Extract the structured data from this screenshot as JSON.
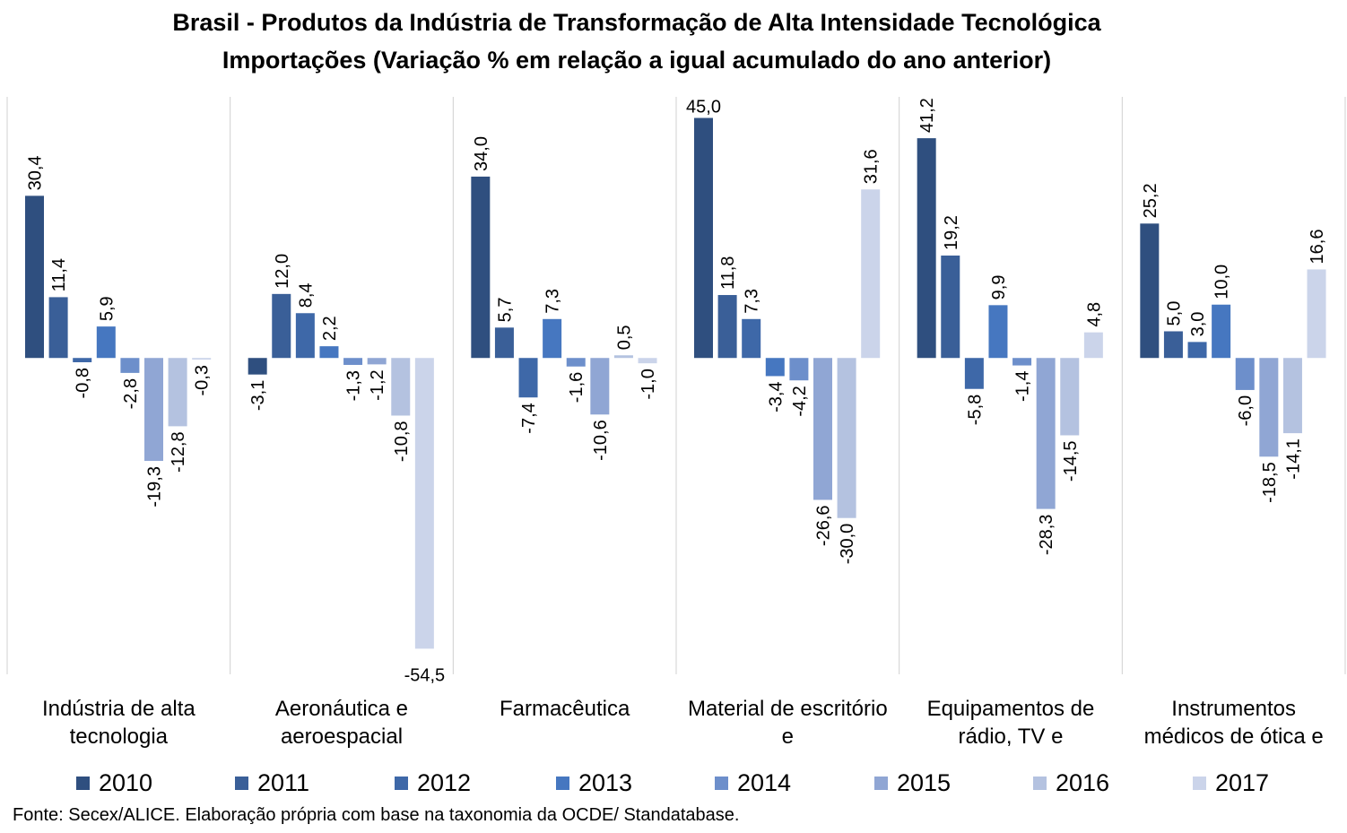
{
  "chart_data": {
    "type": "bar",
    "title": "Brasil - Produtos da Indústria de Transformação de Alta Intensidade Tecnológica",
    "subtitle": "Importações (Variação % em relação a igual acumulado do ano anterior)",
    "categories": [
      "Indústria de alta tecnologia",
      "Aeronáutica e aeroespacial",
      "Farmacêutica",
      "Material de escritório e",
      "Equipamentos de rádio, TV e",
      "Instrumentos médicos de ótica e"
    ],
    "series": [
      {
        "name": "2010",
        "color": "#2f4f7f",
        "values": [
          30.4,
          -3.1,
          34.0,
          45.0,
          41.2,
          25.2
        ],
        "labels": [
          "30,4",
          "-3,1",
          "34,0",
          "45,0",
          "41,2",
          "25,2"
        ]
      },
      {
        "name": "2011",
        "color": "#3a5f98",
        "values": [
          11.4,
          12.0,
          5.7,
          11.8,
          19.2,
          5.0
        ],
        "labels": [
          "11,4",
          "12,0",
          "5,7",
          "11,8",
          "19,2",
          "5,0"
        ]
      },
      {
        "name": "2012",
        "color": "#3e68a8",
        "values": [
          -0.8,
          8.4,
          -7.4,
          7.3,
          -5.8,
          3.0
        ],
        "labels": [
          "-0,8",
          "8,4",
          "-7,4",
          "7,3",
          "-5,8",
          "3,0"
        ]
      },
      {
        "name": "2013",
        "color": "#4677c0",
        "values": [
          5.9,
          2.2,
          7.3,
          -3.4,
          9.9,
          10.0
        ],
        "labels": [
          "5,9",
          "2,2",
          "7,3",
          "-3,4",
          "9,9",
          "10,0"
        ]
      },
      {
        "name": "2014",
        "color": "#6d8fcb",
        "values": [
          -2.8,
          -1.3,
          -1.6,
          -4.2,
          -1.4,
          -6.0
        ],
        "labels": [
          "-2,8",
          "-1,3",
          "-1,6",
          "-4,2",
          "-1,4",
          "-6,0"
        ]
      },
      {
        "name": "2015",
        "color": "#90a6d4",
        "values": [
          -19.3,
          -1.2,
          -10.6,
          -26.6,
          -28.3,
          -18.5
        ],
        "labels": [
          "-19,3",
          "-1,2",
          "-10,6",
          "-26,6",
          "-28,3",
          "-18,5"
        ]
      },
      {
        "name": "2016",
        "color": "#b4c2e0",
        "values": [
          -12.8,
          -10.8,
          0.5,
          -30.0,
          -14.5,
          -14.1
        ],
        "labels": [
          "-12,8",
          "-10,8",
          "0,5",
          "-30,0",
          "-14,5",
          "-14,1"
        ]
      },
      {
        "name": "2017",
        "color": "#cbd4ea",
        "values": [
          -0.3,
          -54.5,
          -1.0,
          31.6,
          4.8,
          16.6
        ],
        "labels": [
          "-0,3",
          "-54,5",
          "-1,0",
          "31,6",
          "4,8",
          "16,6"
        ]
      }
    ],
    "ylim": [
      -59.3,
      50.3
    ],
    "xlabel": "",
    "ylabel": "",
    "grid": false,
    "legend": "bottom"
  },
  "source": "Fonte: Secex/ALICE. Elaboração própria com base na taxonomia da OCDE/ Standatabase."
}
